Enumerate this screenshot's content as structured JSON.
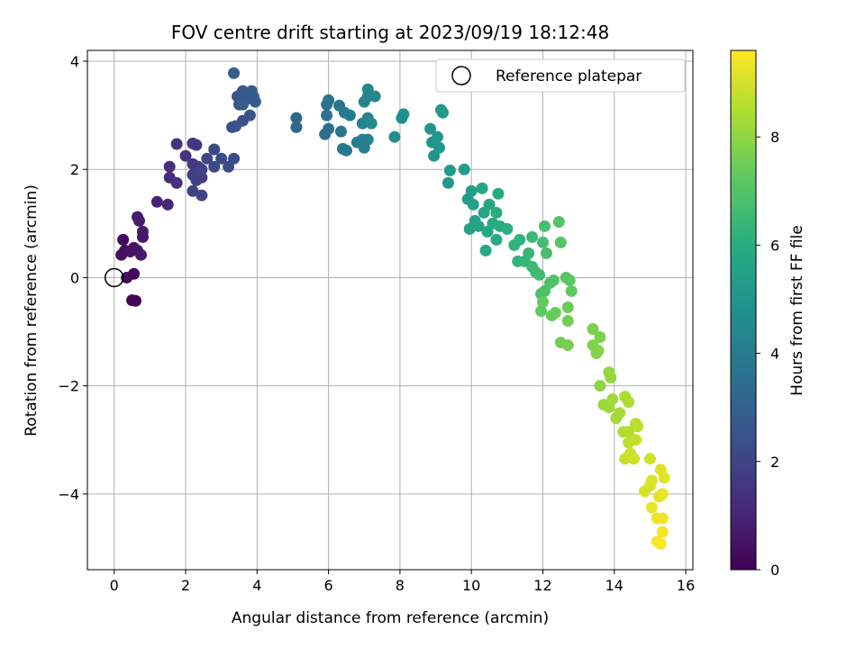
{
  "chart_data": {
    "type": "scatter",
    "title": "FOV centre drift starting at 2023/09/19 18:12:48",
    "xlabel": "Angular distance from reference (arcmin)",
    "ylabel": "Rotation from reference (arcmin)",
    "xlim": [
      -0.75,
      16.2
    ],
    "ylim": [
      -5.4,
      4.2
    ],
    "xticks": [
      0,
      2,
      4,
      6,
      8,
      10,
      12,
      14,
      16
    ],
    "yticks": [
      -4,
      -2,
      0,
      2,
      4
    ],
    "grid": true,
    "legend": {
      "position": "top-right",
      "entries": [
        "Reference platepar"
      ]
    },
    "reference_point": {
      "x": 0,
      "y": 0
    },
    "colorbar": {
      "label": "Hours from first FF file",
      "colormap": "viridis",
      "range": [
        0,
        9.6
      ],
      "ticks": [
        0,
        2,
        4,
        6,
        8
      ]
    },
    "series": [
      {
        "marker": "circle",
        "points": [
          {
            "x": 0.6,
            "y": -0.43,
            "c": 0.1
          },
          {
            "x": 0.5,
            "y": -0.42,
            "c": 0.12
          },
          {
            "x": 0.55,
            "y": 0.07,
            "c": 0.2
          },
          {
            "x": 0.35,
            "y": 0.0,
            "c": 0.25
          },
          {
            "x": 0.25,
            "y": 0.7,
            "c": 0.3
          },
          {
            "x": 0.3,
            "y": 0.5,
            "c": 0.35
          },
          {
            "x": 0.2,
            "y": 0.42,
            "c": 0.4
          },
          {
            "x": 0.45,
            "y": 0.48,
            "c": 0.45
          },
          {
            "x": 0.55,
            "y": 0.55,
            "c": 0.5
          },
          {
            "x": 0.65,
            "y": 0.5,
            "c": 0.55
          },
          {
            "x": 0.75,
            "y": 0.42,
            "c": 0.6
          },
          {
            "x": 0.8,
            "y": 0.75,
            "c": 0.65
          },
          {
            "x": 0.8,
            "y": 0.85,
            "c": 0.7
          },
          {
            "x": 0.7,
            "y": 1.05,
            "c": 0.75
          },
          {
            "x": 0.65,
            "y": 1.12,
            "c": 0.8
          },
          {
            "x": 1.2,
            "y": 1.4,
            "c": 1.0
          },
          {
            "x": 1.5,
            "y": 1.35,
            "c": 1.1
          },
          {
            "x": 1.55,
            "y": 1.85,
            "c": 1.2
          },
          {
            "x": 1.55,
            "y": 2.05,
            "c": 1.3
          },
          {
            "x": 1.75,
            "y": 1.75,
            "c": 1.35
          },
          {
            "x": 1.75,
            "y": 2.47,
            "c": 1.4
          },
          {
            "x": 2.0,
            "y": 2.25,
            "c": 1.5
          },
          {
            "x": 2.2,
            "y": 2.48,
            "c": 1.55
          },
          {
            "x": 2.3,
            "y": 2.45,
            "c": 1.6
          },
          {
            "x": 2.2,
            "y": 2.1,
            "c": 1.65
          },
          {
            "x": 2.35,
            "y": 2.05,
            "c": 1.7
          },
          {
            "x": 2.2,
            "y": 1.9,
            "c": 1.75
          },
          {
            "x": 2.3,
            "y": 1.8,
            "c": 1.8
          },
          {
            "x": 2.45,
            "y": 1.85,
            "c": 1.85
          },
          {
            "x": 2.2,
            "y": 1.6,
            "c": 1.9
          },
          {
            "x": 2.45,
            "y": 1.52,
            "c": 1.95
          },
          {
            "x": 2.45,
            "y": 2.0,
            "c": 2.0
          },
          {
            "x": 2.6,
            "y": 2.2,
            "c": 2.05
          },
          {
            "x": 2.8,
            "y": 2.37,
            "c": 2.1
          },
          {
            "x": 2.8,
            "y": 2.05,
            "c": 2.15
          },
          {
            "x": 3.0,
            "y": 2.2,
            "c": 2.2
          },
          {
            "x": 3.2,
            "y": 2.05,
            "c": 2.25
          },
          {
            "x": 3.35,
            "y": 2.2,
            "c": 2.3
          },
          {
            "x": 3.3,
            "y": 2.78,
            "c": 2.35
          },
          {
            "x": 3.4,
            "y": 2.8,
            "c": 2.4
          },
          {
            "x": 3.6,
            "y": 2.9,
            "c": 2.45
          },
          {
            "x": 3.8,
            "y": 3.0,
            "c": 2.5
          },
          {
            "x": 3.5,
            "y": 3.2,
            "c": 2.55
          },
          {
            "x": 3.45,
            "y": 3.35,
            "c": 2.6
          },
          {
            "x": 3.6,
            "y": 3.45,
            "c": 2.65
          },
          {
            "x": 3.7,
            "y": 3.3,
            "c": 2.7
          },
          {
            "x": 3.9,
            "y": 3.35,
            "c": 2.75
          },
          {
            "x": 3.95,
            "y": 3.25,
            "c": 2.8
          },
          {
            "x": 3.85,
            "y": 3.45,
            "c": 2.85
          },
          {
            "x": 3.35,
            "y": 3.78,
            "c": 2.9
          },
          {
            "x": 3.6,
            "y": 3.2,
            "c": 2.95
          },
          {
            "x": 5.1,
            "y": 2.78,
            "c": 3.2
          },
          {
            "x": 5.1,
            "y": 2.95,
            "c": 3.25
          },
          {
            "x": 5.9,
            "y": 2.65,
            "c": 3.5
          },
          {
            "x": 6.0,
            "y": 2.75,
            "c": 3.55
          },
          {
            "x": 5.95,
            "y": 3.0,
            "c": 3.6
          },
          {
            "x": 5.95,
            "y": 3.2,
            "c": 3.65
          },
          {
            "x": 6.0,
            "y": 3.28,
            "c": 3.7
          },
          {
            "x": 6.3,
            "y": 3.18,
            "c": 3.75
          },
          {
            "x": 6.35,
            "y": 2.7,
            "c": 3.8
          },
          {
            "x": 6.4,
            "y": 2.38,
            "c": 3.85
          },
          {
            "x": 6.5,
            "y": 2.35,
            "c": 3.9
          },
          {
            "x": 6.45,
            "y": 3.05,
            "c": 3.95
          },
          {
            "x": 6.6,
            "y": 3.0,
            "c": 4.0
          },
          {
            "x": 6.8,
            "y": 2.5,
            "c": 4.05
          },
          {
            "x": 6.95,
            "y": 2.55,
            "c": 4.1
          },
          {
            "x": 7.0,
            "y": 2.4,
            "c": 4.15
          },
          {
            "x": 7.1,
            "y": 2.55,
            "c": 4.2
          },
          {
            "x": 6.95,
            "y": 2.85,
            "c": 4.25
          },
          {
            "x": 7.1,
            "y": 2.95,
            "c": 4.3
          },
          {
            "x": 7.0,
            "y": 3.25,
            "c": 4.35
          },
          {
            "x": 7.1,
            "y": 3.35,
            "c": 4.4
          },
          {
            "x": 7.1,
            "y": 3.48,
            "c": 4.45
          },
          {
            "x": 7.3,
            "y": 3.35,
            "c": 4.5
          },
          {
            "x": 7.2,
            "y": 2.85,
            "c": 4.55
          },
          {
            "x": 7.85,
            "y": 2.6,
            "c": 4.7
          },
          {
            "x": 8.05,
            "y": 2.95,
            "c": 4.75
          },
          {
            "x": 8.1,
            "y": 3.02,
            "c": 4.8
          },
          {
            "x": 8.85,
            "y": 2.75,
            "c": 4.95
          },
          {
            "x": 8.9,
            "y": 2.5,
            "c": 5.0
          },
          {
            "x": 8.95,
            "y": 2.25,
            "c": 5.05
          },
          {
            "x": 9.05,
            "y": 2.6,
            "c": 5.1
          },
          {
            "x": 9.1,
            "y": 2.4,
            "c": 5.12
          },
          {
            "x": 9.15,
            "y": 3.1,
            "c": 5.15
          },
          {
            "x": 9.2,
            "y": 3.05,
            "c": 5.18
          },
          {
            "x": 9.35,
            "y": 1.75,
            "c": 5.2
          },
          {
            "x": 9.4,
            "y": 1.98,
            "c": 5.25
          },
          {
            "x": 9.8,
            "y": 2.0,
            "c": 5.3
          },
          {
            "x": 9.9,
            "y": 1.45,
            "c": 5.35
          },
          {
            "x": 10.0,
            "y": 1.6,
            "c": 5.4
          },
          {
            "x": 10.05,
            "y": 1.35,
            "c": 5.45
          },
          {
            "x": 9.95,
            "y": 0.9,
            "c": 5.5
          },
          {
            "x": 10.1,
            "y": 1.05,
            "c": 5.55
          },
          {
            "x": 10.2,
            "y": 0.95,
            "c": 5.6
          },
          {
            "x": 10.35,
            "y": 1.2,
            "c": 5.65
          },
          {
            "x": 10.3,
            "y": 1.65,
            "c": 5.7
          },
          {
            "x": 10.5,
            "y": 1.35,
            "c": 5.72
          },
          {
            "x": 10.45,
            "y": 0.85,
            "c": 5.75
          },
          {
            "x": 10.4,
            "y": 0.5,
            "c": 5.8
          },
          {
            "x": 10.6,
            "y": 1.0,
            "c": 5.85
          },
          {
            "x": 10.7,
            "y": 0.7,
            "c": 5.9
          },
          {
            "x": 10.75,
            "y": 1.55,
            "c": 5.95
          },
          {
            "x": 10.7,
            "y": 1.2,
            "c": 6.0
          },
          {
            "x": 10.8,
            "y": 0.95,
            "c": 6.05
          },
          {
            "x": 11.0,
            "y": 0.9,
            "c": 6.1
          },
          {
            "x": 11.2,
            "y": 0.6,
            "c": 6.2
          },
          {
            "x": 11.35,
            "y": 0.7,
            "c": 6.25
          },
          {
            "x": 11.3,
            "y": 0.3,
            "c": 6.3
          },
          {
            "x": 11.5,
            "y": 0.3,
            "c": 6.35
          },
          {
            "x": 11.6,
            "y": 0.45,
            "c": 6.4
          },
          {
            "x": 11.7,
            "y": 0.75,
            "c": 6.45
          },
          {
            "x": 11.7,
            "y": 0.2,
            "c": 6.5
          },
          {
            "x": 11.8,
            "y": 0.1,
            "c": 6.55
          },
          {
            "x": 11.9,
            "y": 0.05,
            "c": 6.6
          },
          {
            "x": 12.0,
            "y": 0.65,
            "c": 6.65
          },
          {
            "x": 12.05,
            "y": 0.95,
            "c": 6.7
          },
          {
            "x": 12.1,
            "y": 0.45,
            "c": 6.75
          },
          {
            "x": 11.95,
            "y": -0.3,
            "c": 6.8
          },
          {
            "x": 12.05,
            "y": -0.25,
            "c": 6.85
          },
          {
            "x": 12.2,
            "y": -0.1,
            "c": 6.9
          },
          {
            "x": 12.3,
            "y": -0.05,
            "c": 6.95
          },
          {
            "x": 12.45,
            "y": 1.03,
            "c": 7.0
          },
          {
            "x": 12.5,
            "y": 0.65,
            "c": 7.05
          },
          {
            "x": 12.65,
            "y": 0.0,
            "c": 7.1
          },
          {
            "x": 12.75,
            "y": -0.05,
            "c": 7.15
          },
          {
            "x": 12.8,
            "y": -0.25,
            "c": 7.2
          },
          {
            "x": 11.95,
            "y": -0.62,
            "c": 7.25
          },
          {
            "x": 12.0,
            "y": -0.45,
            "c": 7.3
          },
          {
            "x": 12.25,
            "y": -0.7,
            "c": 7.35
          },
          {
            "x": 12.35,
            "y": -0.65,
            "c": 7.4
          },
          {
            "x": 12.7,
            "y": -0.55,
            "c": 7.45
          },
          {
            "x": 12.7,
            "y": -0.8,
            "c": 7.5
          },
          {
            "x": 12.5,
            "y": -1.2,
            "c": 7.55
          },
          {
            "x": 12.7,
            "y": -1.25,
            "c": 7.6
          },
          {
            "x": 13.4,
            "y": -0.95,
            "c": 7.65
          },
          {
            "x": 13.6,
            "y": -1.1,
            "c": 7.7
          },
          {
            "x": 13.4,
            "y": -1.25,
            "c": 7.75
          },
          {
            "x": 13.5,
            "y": -1.4,
            "c": 7.8
          },
          {
            "x": 13.55,
            "y": -1.35,
            "c": 7.85
          },
          {
            "x": 13.6,
            "y": -2.0,
            "c": 8.0
          },
          {
            "x": 13.85,
            "y": -1.75,
            "c": 8.05
          },
          {
            "x": 13.9,
            "y": -1.85,
            "c": 8.1
          },
          {
            "x": 13.7,
            "y": -2.35,
            "c": 8.15
          },
          {
            "x": 13.85,
            "y": -2.4,
            "c": 8.2
          },
          {
            "x": 13.95,
            "y": -2.25,
            "c": 8.25
          },
          {
            "x": 14.05,
            "y": -2.6,
            "c": 8.3
          },
          {
            "x": 14.15,
            "y": -2.5,
            "c": 8.35
          },
          {
            "x": 14.3,
            "y": -2.2,
            "c": 8.4
          },
          {
            "x": 14.4,
            "y": -2.3,
            "c": 8.45
          },
          {
            "x": 14.25,
            "y": -2.85,
            "c": 8.5
          },
          {
            "x": 14.4,
            "y": -2.85,
            "c": 8.55
          },
          {
            "x": 14.6,
            "y": -2.7,
            "c": 8.6
          },
          {
            "x": 14.65,
            "y": -2.75,
            "c": 8.65
          },
          {
            "x": 14.4,
            "y": -3.05,
            "c": 8.7
          },
          {
            "x": 14.6,
            "y": -3.0,
            "c": 8.75
          },
          {
            "x": 14.3,
            "y": -3.35,
            "c": 8.8
          },
          {
            "x": 14.45,
            "y": -3.25,
            "c": 8.85
          },
          {
            "x": 14.55,
            "y": -3.35,
            "c": 8.9
          },
          {
            "x": 15.0,
            "y": -3.35,
            "c": 8.95
          },
          {
            "x": 14.85,
            "y": -3.95,
            "c": 9.0
          },
          {
            "x": 15.0,
            "y": -3.85,
            "c": 9.05
          },
          {
            "x": 15.05,
            "y": -3.75,
            "c": 9.1
          },
          {
            "x": 15.3,
            "y": -3.55,
            "c": 9.15
          },
          {
            "x": 15.4,
            "y": -3.7,
            "c": 9.2
          },
          {
            "x": 15.25,
            "y": -4.05,
            "c": 9.25
          },
          {
            "x": 15.05,
            "y": -4.25,
            "c": 9.3
          },
          {
            "x": 15.35,
            "y": -4.0,
            "c": 9.32
          },
          {
            "x": 15.2,
            "y": -4.45,
            "c": 9.35
          },
          {
            "x": 15.35,
            "y": -4.45,
            "c": 9.4
          },
          {
            "x": 15.35,
            "y": -4.7,
            "c": 9.45
          },
          {
            "x": 15.2,
            "y": -4.88,
            "c": 9.5
          },
          {
            "x": 15.3,
            "y": -4.92,
            "c": 9.55
          }
        ]
      }
    ]
  }
}
